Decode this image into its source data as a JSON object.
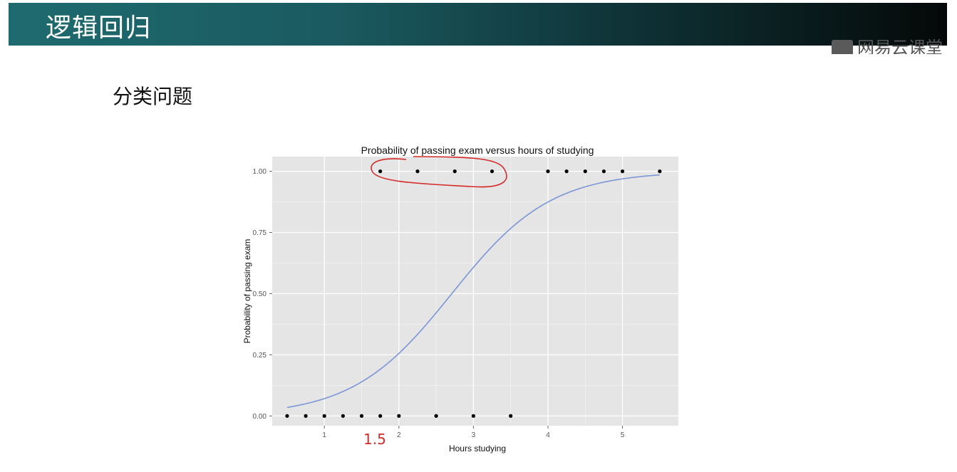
{
  "header": {
    "title": "逻辑回归"
  },
  "watermark": {
    "text": "网易云课堂"
  },
  "section": {
    "heading": "分类问题"
  },
  "annotation": {
    "handwritten_label": "1.5",
    "color": "#d42a2a"
  },
  "colors": {
    "curve": "#7b96d6",
    "panel": "#e5e5e5",
    "grid": "#ffffff",
    "points": "#000000"
  },
  "chart_data": {
    "type": "scatter",
    "title": "Probability of passing exam versus hours of studying",
    "xlabel": "Hours studying",
    "ylabel": "Probability of passing exam",
    "xlim": [
      0.3,
      5.75
    ],
    "ylim": [
      -0.04,
      1.06
    ],
    "xticks": [
      1,
      2,
      3,
      4,
      5
    ],
    "yticks": [
      0.0,
      0.25,
      0.5,
      0.75,
      1.0
    ],
    "ytick_labels": [
      "0.00",
      "0.25",
      "0.50",
      "0.75",
      "1.00"
    ],
    "grid": true,
    "points": [
      {
        "x": 0.5,
        "y": 0
      },
      {
        "x": 0.75,
        "y": 0
      },
      {
        "x": 1.0,
        "y": 0
      },
      {
        "x": 1.25,
        "y": 0
      },
      {
        "x": 1.5,
        "y": 0
      },
      {
        "x": 1.75,
        "y": 0
      },
      {
        "x": 1.75,
        "y": 1
      },
      {
        "x": 2.0,
        "y": 0
      },
      {
        "x": 2.25,
        "y": 1
      },
      {
        "x": 2.5,
        "y": 0
      },
      {
        "x": 2.75,
        "y": 1
      },
      {
        "x": 3.0,
        "y": 0
      },
      {
        "x": 3.25,
        "y": 1
      },
      {
        "x": 3.5,
        "y": 0
      },
      {
        "x": 4.0,
        "y": 1
      },
      {
        "x": 4.25,
        "y": 1
      },
      {
        "x": 4.5,
        "y": 1
      },
      {
        "x": 4.75,
        "y": 1
      },
      {
        "x": 5.0,
        "y": 1
      },
      {
        "x": 5.5,
        "y": 1
      }
    ],
    "fit_curve": {
      "type": "logistic",
      "intercept": -4.0777,
      "slope": 1.5046,
      "x_range": [
        0.5,
        5.5
      ]
    }
  }
}
